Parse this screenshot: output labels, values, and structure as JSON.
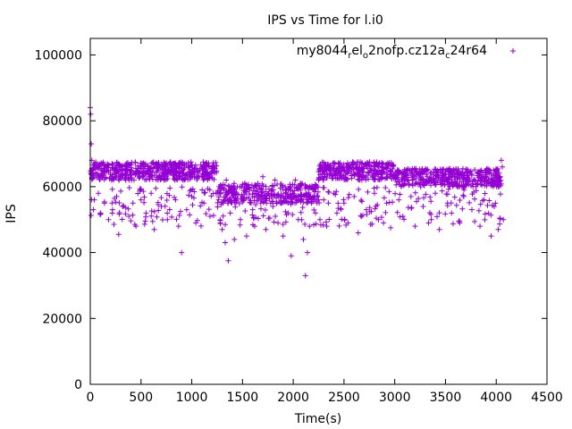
{
  "chart_data": {
    "type": "scatter",
    "title": "IPS vs Time for l.i0",
    "xlabel": "Time(s)",
    "ylabel": "IPS",
    "xlim": [
      0,
      4500
    ],
    "ylim": [
      0,
      105000
    ],
    "xticks": [
      0,
      500,
      1000,
      1500,
      2000,
      2500,
      3000,
      3500,
      4000,
      4500
    ],
    "yticks": [
      0,
      20000,
      40000,
      60000,
      80000,
      100000
    ],
    "grid": false,
    "legend_position": "top-right",
    "series": [
      {
        "name_parts": [
          "my8044",
          "r",
          "el",
          "o",
          "2nofp.cz12a",
          "c",
          "24r64"
        ],
        "name_display": "my8044relo2nofp.cz12ac24r64",
        "marker": "+",
        "color": "#9400d3",
        "points": [
          [
            0,
            84000
          ],
          [
            5,
            82000
          ],
          [
            10,
            73000
          ],
          [
            15,
            68000
          ],
          [
            20,
            64000
          ],
          [
            30,
            53000
          ],
          [
            40,
            56000
          ],
          [
            60,
            66000
          ],
          [
            80,
            58000
          ],
          [
            100,
            52000
          ],
          [
            120,
            64000
          ],
          [
            140,
            55000
          ],
          [
            160,
            66000
          ],
          [
            180,
            50000
          ],
          [
            200,
            65000
          ],
          [
            220,
            53000
          ],
          [
            240,
            63000
          ],
          [
            260,
            57000
          ],
          [
            280,
            45500
          ],
          [
            300,
            66000
          ],
          [
            320,
            54000
          ],
          [
            350,
            62000
          ],
          [
            380,
            51000
          ],
          [
            400,
            65000
          ],
          [
            420,
            55000
          ],
          [
            450,
            48000
          ],
          [
            480,
            64000
          ],
          [
            500,
            56000
          ],
          [
            520,
            66000
          ],
          [
            550,
            52000
          ],
          [
            580,
            63000
          ],
          [
            600,
            58000
          ],
          [
            630,
            47000
          ],
          [
            660,
            66000
          ],
          [
            700,
            54000
          ],
          [
            730,
            62000
          ],
          [
            760,
            50000
          ],
          [
            800,
            65000
          ],
          [
            840,
            56000
          ],
          [
            870,
            48000
          ],
          [
            900,
            40000
          ],
          [
            920,
            64000
          ],
          [
            950,
            53000
          ],
          [
            980,
            66000
          ],
          [
            1000,
            57000
          ],
          [
            1040,
            49000
          ],
          [
            1080,
            65000
          ],
          [
            1120,
            55000
          ],
          [
            1150,
            63000
          ],
          [
            1180,
            51000
          ],
          [
            1200,
            66000
          ],
          [
            1240,
            58000
          ],
          [
            1270,
            60000
          ],
          [
            1300,
            47000
          ],
          [
            1310,
            55000
          ],
          [
            1330,
            43000
          ],
          [
            1340,
            62000
          ],
          [
            1360,
            37500
          ],
          [
            1380,
            52000
          ],
          [
            1400,
            58000
          ],
          [
            1420,
            44000
          ],
          [
            1450,
            60000
          ],
          [
            1480,
            50000
          ],
          [
            1510,
            56000
          ],
          [
            1540,
            45000
          ],
          [
            1570,
            59000
          ],
          [
            1600,
            53000
          ],
          [
            1620,
            48000
          ],
          [
            1650,
            61000
          ],
          [
            1680,
            55000
          ],
          [
            1700,
            63000
          ],
          [
            1730,
            47000
          ],
          [
            1760,
            58000
          ],
          [
            1800,
            54000
          ],
          [
            1820,
            62000
          ],
          [
            1850,
            49000
          ],
          [
            1880,
            57000
          ],
          [
            1900,
            45000
          ],
          [
            1920,
            60000
          ],
          [
            1950,
            52000
          ],
          [
            1980,
            39000
          ],
          [
            2000,
            58000
          ],
          [
            2020,
            62000
          ],
          [
            2050,
            50000
          ],
          [
            2070,
            56000
          ],
          [
            2100,
            44000
          ],
          [
            2120,
            33000
          ],
          [
            2140,
            40000
          ],
          [
            2160,
            48000
          ],
          [
            2180,
            55000
          ],
          [
            2200,
            59000
          ],
          [
            2220,
            52000
          ],
          [
            2250,
            62000
          ],
          [
            2280,
            66000
          ],
          [
            2300,
            56000
          ],
          [
            2330,
            48000
          ],
          [
            2360,
            64000
          ],
          [
            2400,
            58000
          ],
          [
            2430,
            52000
          ],
          [
            2460,
            65000
          ],
          [
            2500,
            55000
          ],
          [
            2540,
            49000
          ],
          [
            2570,
            64000
          ],
          [
            2600,
            57000
          ],
          [
            2640,
            46000
          ],
          [
            2680,
            63000
          ],
          [
            2720,
            53000
          ],
          [
            2760,
            65000
          ],
          [
            2800,
            58000
          ],
          [
            2840,
            50000
          ],
          [
            2880,
            64000
          ],
          [
            2920,
            55000
          ],
          [
            2960,
            47500
          ],
          [
            3000,
            63000
          ],
          [
            3040,
            56000
          ],
          [
            3080,
            51000
          ],
          [
            3120,
            62000
          ],
          [
            3160,
            57000
          ],
          [
            3200,
            48000
          ],
          [
            3240,
            61000
          ],
          [
            3280,
            54000
          ],
          [
            3320,
            63000
          ],
          [
            3360,
            50000
          ],
          [
            3400,
            58000
          ],
          [
            3440,
            47000
          ],
          [
            3480,
            62000
          ],
          [
            3520,
            55000
          ],
          [
            3560,
            52000
          ],
          [
            3600,
            61000
          ],
          [
            3640,
            49000
          ],
          [
            3680,
            57000
          ],
          [
            3720,
            62000
          ],
          [
            3760,
            53000
          ],
          [
            3800,
            60000
          ],
          [
            3840,
            48000
          ],
          [
            3880,
            56000
          ],
          [
            3920,
            61000
          ],
          [
            3950,
            45000
          ],
          [
            3980,
            54000
          ],
          [
            4000,
            62000
          ],
          [
            4020,
            47000
          ],
          [
            4040,
            63000
          ],
          [
            4050,
            68000
          ],
          [
            4060,
            66000
          ],
          [
            4070,
            50000
          ]
        ],
        "bands": [
          {
            "x0": 0,
            "x1": 1250,
            "y0": 62000,
            "y1": 67500,
            "count": 520
          },
          {
            "x0": 1250,
            "x1": 2250,
            "y0": 55000,
            "y1": 61000,
            "count": 320
          },
          {
            "x0": 2250,
            "x1": 3000,
            "y0": 62000,
            "y1": 67500,
            "count": 300
          },
          {
            "x0": 3000,
            "x1": 4050,
            "y0": 60000,
            "y1": 65500,
            "count": 420
          },
          {
            "x0": 0,
            "x1": 4050,
            "y0": 48000,
            "y1": 60000,
            "count": 260
          }
        ]
      }
    ]
  }
}
